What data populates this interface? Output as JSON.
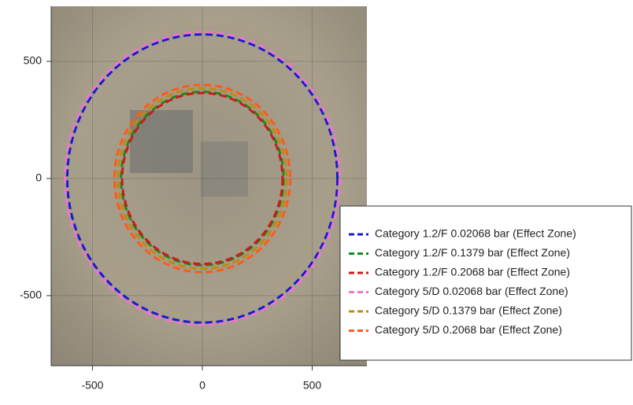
{
  "chart_data": {
    "type": "zones",
    "series": [
      {
        "name": "Category 1.2/F 0.02068 bar (Effect Zone)",
        "color": "#1a1acc",
        "values": [
          615
        ]
      },
      {
        "name": "Category 1.2/F 0.1379 bar (Effect Zone)",
        "color": "#1a8a1a",
        "values": [
          370
        ]
      },
      {
        "name": "Category 1.2/F 0.2068 bar (Effect Zone)",
        "color": "#cc1a1a",
        "values": [
          365
        ]
      },
      {
        "name": "Category 5/D 0.02068 bar (Effect Zone)",
        "color": "#ee77cc",
        "values": [
          625
        ]
      },
      {
        "name": "Category 5/D 0.1379 bar (Effect Zone)",
        "color": "#c08a10",
        "values": [
          385
        ]
      },
      {
        "name": "Category 5/D 0.2068 bar (Effect Zone)",
        "color": "#ff5a1a",
        "values": [
          400
        ]
      }
    ],
    "xlim": [
      -688,
      749
    ],
    "ylim": [
      -799,
      735
    ],
    "xticks": [
      -500,
      0,
      500
    ],
    "yticks": [
      500,
      0,
      -500
    ],
    "grid": true,
    "legend": "lower-right"
  }
}
